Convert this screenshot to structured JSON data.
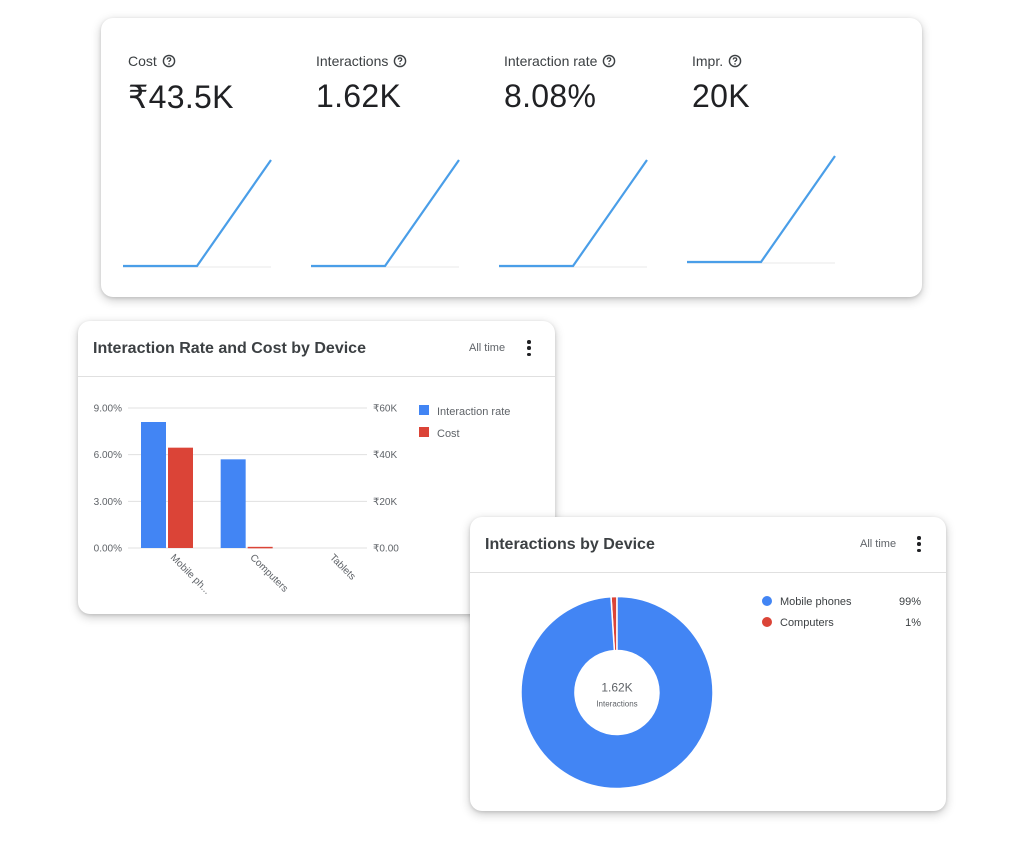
{
  "kpis": [
    {
      "label": "Cost",
      "value": "₹43.5K"
    },
    {
      "label": "Interactions",
      "value": "1.62K"
    },
    {
      "label": "Interaction rate",
      "value": "8.08%"
    },
    {
      "label": "Impr.",
      "value": "20K"
    }
  ],
  "colors": {
    "blue": "#4285f4",
    "red": "#db4437",
    "sparkline": "#4a9ee8",
    "grid": "#e0e0e0"
  },
  "bar_card": {
    "title": "Interaction Rate and Cost by Device",
    "range_label": "All time",
    "menu_icon": "more-vert-icon"
  },
  "donut_card": {
    "title": "Interactions by Device",
    "range_label": "All time",
    "menu_icon": "more-vert-icon",
    "center_value": "1.62K",
    "center_label": "Interactions"
  },
  "chart_data": [
    {
      "type": "line",
      "chart": "cost-sparkline",
      "x": [
        0,
        1,
        2
      ],
      "y": [
        0,
        0,
        43.5
      ],
      "grid": false
    },
    {
      "type": "line",
      "chart": "interactions-sparkline",
      "x": [
        0,
        1,
        2
      ],
      "y": [
        0,
        0,
        1.62
      ],
      "grid": false
    },
    {
      "type": "line",
      "chart": "interaction-rate-sparkline",
      "x": [
        0,
        1,
        2
      ],
      "y": [
        0,
        0,
        8.08
      ],
      "grid": false
    },
    {
      "type": "line",
      "chart": "impressions-sparkline",
      "x": [
        0,
        1,
        2
      ],
      "y": [
        0,
        0,
        20
      ],
      "grid": false
    },
    {
      "type": "bar",
      "title": "Interaction Rate and Cost by Device",
      "categories": [
        "Mobile ph...",
        "Computers",
        "Tablets"
      ],
      "series": [
        {
          "name": "Interaction rate",
          "axis": "left",
          "color": "#4285f4",
          "values": [
            8.1,
            5.7,
            0
          ]
        },
        {
          "name": "Cost",
          "axis": "right",
          "color": "#db4437",
          "values": [
            43000,
            500,
            0
          ]
        }
      ],
      "y_left": {
        "ticks": [
          "0.00%",
          "3.00%",
          "6.00%",
          "9.00%"
        ],
        "ylim": [
          0,
          9
        ]
      },
      "y_right": {
        "ticks": [
          "₹0.00",
          "₹20K",
          "₹40K",
          "₹60K"
        ],
        "ylim": [
          0,
          60000
        ]
      },
      "grid": true,
      "legend_position": "right"
    },
    {
      "type": "pie",
      "title": "Interactions by Device",
      "donut": true,
      "labels": [
        "Mobile phones",
        "Computers"
      ],
      "values": [
        99,
        1
      ],
      "display_values": [
        "99%",
        "1%"
      ],
      "colors": [
        "#4285f4",
        "#db4437"
      ],
      "legend_position": "right"
    }
  ]
}
